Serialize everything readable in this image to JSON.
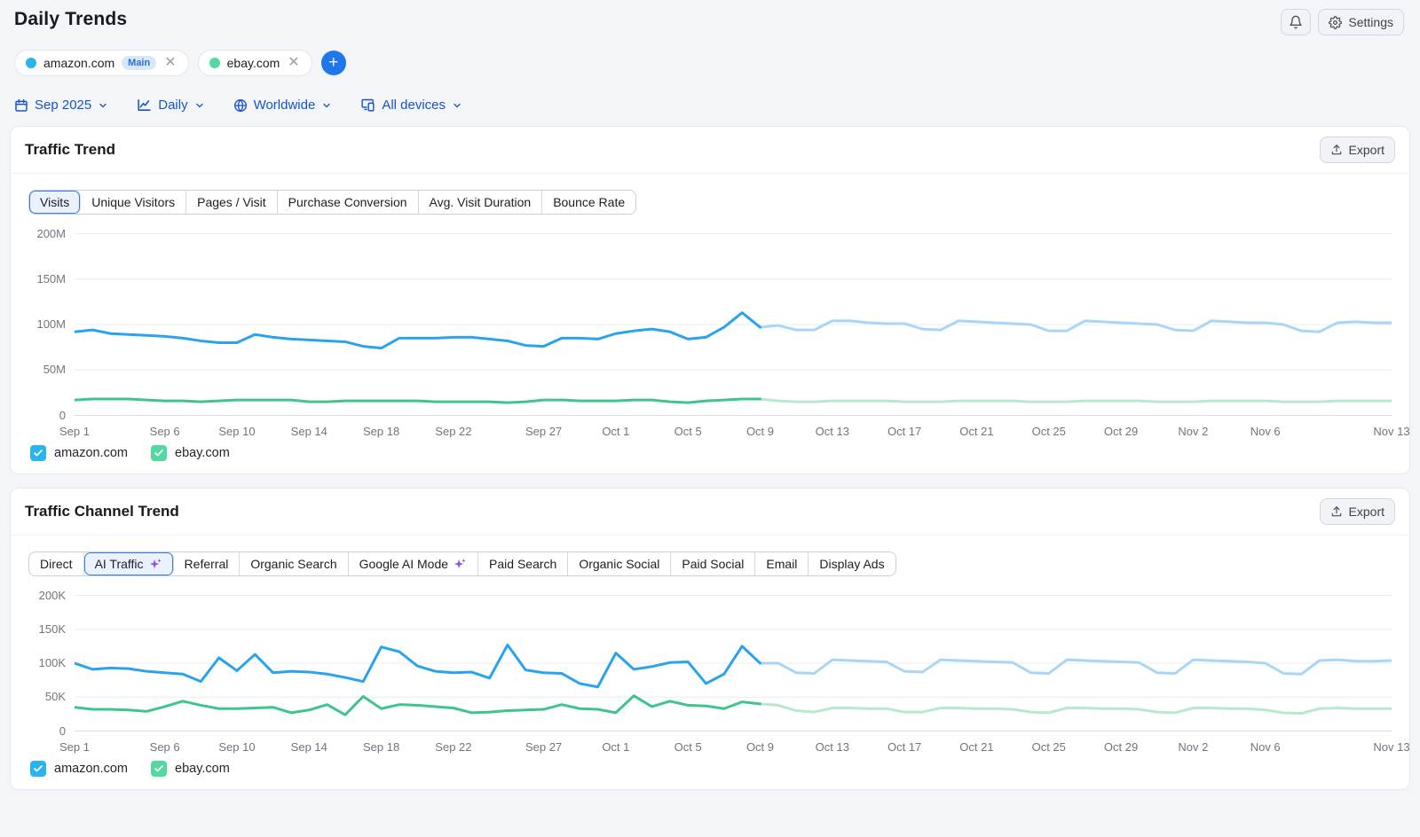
{
  "header": {
    "title": "Daily Trends",
    "settings_label": "Settings"
  },
  "targets": {
    "chips": [
      {
        "label": "amazon.com",
        "badge": "Main",
        "dot_color": "#2BB3F0"
      },
      {
        "label": "ebay.com",
        "dot_color": "#53D8A2"
      }
    ],
    "add_button": "+"
  },
  "filters": [
    {
      "id": "date-range",
      "label": "Sep 2025",
      "icon": "calendar-icon"
    },
    {
      "id": "granularity",
      "label": "Daily",
      "icon": "trend-icon"
    },
    {
      "id": "location",
      "label": "Worldwide",
      "icon": "globe-icon"
    },
    {
      "id": "devices",
      "label": "All devices",
      "icon": "devices-icon"
    }
  ],
  "colors": {
    "filter_blue": "#1454C8",
    "sparkle_purple": "#8E52F2",
    "badge_bg": "#D8E8FC",
    "badge_text": "#2A6FD8",
    "amazon_line": "#2AA3EE",
    "amazon_forecast": "#A9D5F6",
    "ebay_line": "#3FC48E",
    "ebay_forecast": "#B7E9D1"
  },
  "cards": [
    {
      "title": "Traffic Trend",
      "export_label": "Export",
      "tabs": [
        {
          "label": "Visits",
          "selected": true
        },
        {
          "label": "Unique Visitors"
        },
        {
          "label": "Pages / Visit"
        },
        {
          "label": "Purchase Conversion"
        },
        {
          "label": "Avg. Visit Duration"
        },
        {
          "label": "Bounce Rate"
        }
      ]
    },
    {
      "title": "Traffic Channel Trend",
      "export_label": "Export",
      "tabs": [
        {
          "label": "Direct"
        },
        {
          "label": "AI Traffic",
          "selected": true,
          "sparkle": true
        },
        {
          "label": "Referral"
        },
        {
          "label": "Organic Search"
        },
        {
          "label": "Google AI Mode",
          "sparkle": true
        },
        {
          "label": "Paid Search"
        },
        {
          "label": "Organic Social"
        },
        {
          "label": "Paid Social"
        },
        {
          "label": "Email"
        },
        {
          "label": "Display Ads"
        }
      ]
    }
  ],
  "legend": [
    {
      "label": "amazon.com",
      "checked": true,
      "color": "#2BB3F0"
    },
    {
      "label": "ebay.com",
      "checked": true,
      "color": "#53D8A2"
    }
  ],
  "chart_data": [
    {
      "type": "line",
      "title": "Traffic Trend",
      "metric": "Visits",
      "unit": "M",
      "ylim": [
        0,
        200
      ],
      "yticks": [
        {
          "label": "200M",
          "value": 200
        },
        {
          "label": "150M",
          "value": 150
        },
        {
          "label": "100M",
          "value": 100
        },
        {
          "label": "50M",
          "value": 50
        },
        {
          "label": "0",
          "value": 0
        }
      ],
      "x_start": "Sep 1",
      "x_end": "Nov 13",
      "n_points": 74,
      "forecast_start_index": 38,
      "x_tick_labels": [
        {
          "label": "Sep 1",
          "index": 0
        },
        {
          "label": "Sep 6",
          "index": 5
        },
        {
          "label": "Sep 10",
          "index": 9
        },
        {
          "label": "Sep 14",
          "index": 13
        },
        {
          "label": "Sep 18",
          "index": 17
        },
        {
          "label": "Sep 22",
          "index": 21
        },
        {
          "label": "Sep 27",
          "index": 26
        },
        {
          "label": "Oct 1",
          "index": 30
        },
        {
          "label": "Oct 5",
          "index": 34
        },
        {
          "label": "Oct 9",
          "index": 38
        },
        {
          "label": "Oct 13",
          "index": 42
        },
        {
          "label": "Oct 17",
          "index": 46
        },
        {
          "label": "Oct 21",
          "index": 50
        },
        {
          "label": "Oct 25",
          "index": 54
        },
        {
          "label": "Oct 29",
          "index": 58
        },
        {
          "label": "Nov 2",
          "index": 62
        },
        {
          "label": "Nov 6",
          "index": 66
        },
        {
          "label": "Nov 13",
          "index": 73
        }
      ],
      "series": [
        {
          "name": "amazon.com",
          "color": "#2AA3EE",
          "forecast_color": "#A9D5F6",
          "values": [
            92,
            94,
            90,
            89,
            88,
            87,
            85,
            82,
            80,
            80,
            89,
            86,
            84,
            83,
            82,
            81,
            76,
            74,
            85,
            85,
            85,
            86,
            86,
            84,
            82,
            77,
            76,
            85,
            85,
            84,
            90,
            93,
            95,
            92,
            84,
            86,
            97,
            113,
            97,
            99,
            94,
            94,
            104,
            104,
            102,
            101,
            101,
            95,
            94,
            104,
            103,
            102,
            101,
            100,
            93,
            93,
            104,
            103,
            102,
            101,
            100,
            94,
            93,
            104,
            103,
            102,
            102,
            100,
            93,
            92,
            102,
            103,
            102,
            102
          ]
        },
        {
          "name": "ebay.com",
          "color": "#3FC48E",
          "forecast_color": "#B7E9D1",
          "values": [
            17,
            18,
            18,
            18,
            17,
            16,
            16,
            15,
            16,
            17,
            17,
            17,
            17,
            15,
            15,
            16,
            16,
            16,
            16,
            16,
            15,
            15,
            15,
            15,
            14,
            15,
            17,
            17,
            16,
            16,
            16,
            17,
            17,
            15,
            14,
            16,
            17,
            18,
            18,
            16,
            15,
            15,
            16,
            16,
            16,
            16,
            15,
            15,
            15,
            16,
            16,
            16,
            16,
            15,
            15,
            15,
            16,
            16,
            16,
            16,
            15,
            15,
            15,
            16,
            16,
            16,
            16,
            15,
            15,
            15,
            16,
            16,
            16,
            16
          ]
        }
      ]
    },
    {
      "type": "line",
      "title": "Traffic Channel Trend",
      "metric": "AI Traffic",
      "unit": "K",
      "ylim": [
        0,
        200
      ],
      "yticks": [
        {
          "label": "200K",
          "value": 200
        },
        {
          "label": "150K",
          "value": 150
        },
        {
          "label": "100K",
          "value": 100
        },
        {
          "label": "50K",
          "value": 50
        },
        {
          "label": "0",
          "value": 0
        }
      ],
      "x_start": "Sep 1",
      "x_end": "Nov 13",
      "n_points": 74,
      "forecast_start_index": 38,
      "x_tick_labels": [
        {
          "label": "Sep 1",
          "index": 0
        },
        {
          "label": "Sep 6",
          "index": 5
        },
        {
          "label": "Sep 10",
          "index": 9
        },
        {
          "label": "Sep 14",
          "index": 13
        },
        {
          "label": "Sep 18",
          "index": 17
        },
        {
          "label": "Sep 22",
          "index": 21
        },
        {
          "label": "Sep 27",
          "index": 26
        },
        {
          "label": "Oct 1",
          "index": 30
        },
        {
          "label": "Oct 5",
          "index": 34
        },
        {
          "label": "Oct 9",
          "index": 38
        },
        {
          "label": "Oct 13",
          "index": 42
        },
        {
          "label": "Oct 17",
          "index": 46
        },
        {
          "label": "Oct 21",
          "index": 50
        },
        {
          "label": "Oct 25",
          "index": 54
        },
        {
          "label": "Oct 29",
          "index": 58
        },
        {
          "label": "Nov 2",
          "index": 62
        },
        {
          "label": "Nov 6",
          "index": 66
        },
        {
          "label": "Nov 13",
          "index": 73
        }
      ],
      "series": [
        {
          "name": "amazon.com",
          "color": "#2AA3EE",
          "forecast_color": "#A9D5F6",
          "values": [
            100,
            91,
            93,
            92,
            88,
            86,
            84,
            73,
            108,
            89,
            113,
            86,
            88,
            87,
            84,
            79,
            73,
            124,
            117,
            96,
            88,
            86,
            87,
            78,
            127,
            90,
            86,
            85,
            70,
            65,
            115,
            91,
            95,
            101,
            102,
            70,
            84,
            125,
            100,
            100,
            86,
            85,
            105,
            104,
            103,
            102,
            88,
            87,
            105,
            104,
            103,
            102,
            101,
            86,
            85,
            105,
            104,
            103,
            102,
            101,
            86,
            85,
            105,
            104,
            103,
            102,
            100,
            85,
            84,
            104,
            105,
            103,
            103,
            104
          ]
        },
        {
          "name": "ebay.com",
          "color": "#3FC48E",
          "forecast_color": "#B7E9D1",
          "values": [
            35,
            32,
            32,
            31,
            29,
            36,
            44,
            38,
            33,
            33,
            34,
            35,
            27,
            31,
            39,
            24,
            51,
            33,
            39,
            38,
            36,
            34,
            27,
            28,
            30,
            31,
            32,
            39,
            33,
            32,
            27,
            52,
            36,
            44,
            38,
            37,
            33,
            43,
            40,
            38,
            30,
            28,
            34,
            34,
            33,
            33,
            28,
            28,
            34,
            34,
            33,
            33,
            32,
            28,
            27,
            34,
            34,
            33,
            33,
            32,
            28,
            27,
            34,
            34,
            33,
            33,
            31,
            27,
            26,
            33,
            34,
            33,
            33,
            33
          ]
        }
      ]
    }
  ]
}
